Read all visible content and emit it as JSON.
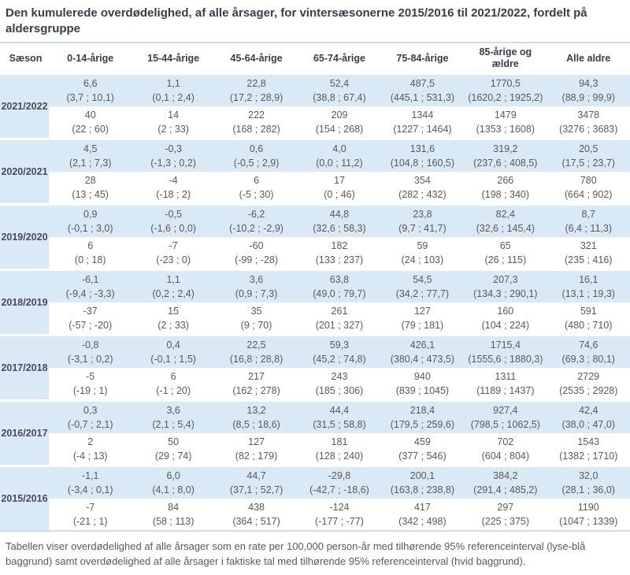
{
  "title": "Den kumulerede overdødelighed, af alle årsager, for vintersæsonerne 2015/2016 til 2021/2022, fordelt på aldersgruppe",
  "footnote": "Tabellen viser overdødelighed af alle årsager som en rate per 100,000 person-år med tilhørende 95% referenceinterval (lyse-blå baggrund) samt overdødelighed af alle årsager i faktiske tal med tilhørende 95% referenceinterval (hvid baggrund).",
  "colors": {
    "row_highlight": "#D9E9F6",
    "table_rule": "#C9DFF0",
    "heading_text": "#3B3B4D",
    "body_text": "#595959"
  },
  "table": {
    "columns": [
      "Sæson",
      "0-14-årige",
      "15-44-årige",
      "45-64-årige",
      "65-74-årige",
      "75-84-årige",
      "85-årige og ældre",
      "Alle aldre"
    ],
    "seasons": [
      {
        "label": "2021/2022",
        "rate": [
          "6,6",
          "1,1",
          "22,8",
          "52,4",
          "487,5",
          "1770,5",
          "94,3"
        ],
        "rate_ci": [
          "(3,7 ; 10,1)",
          "(0,1 ; 2,4)",
          "(17,2 ; 28,9)",
          "(38,8 ; 67,4)",
          "(445,1 ; 531,3)",
          "(1620,2 ; 1925,2)",
          "(88,9 ; 99,9)"
        ],
        "count": [
          "40",
          "14",
          "222",
          "209",
          "1344",
          "1479",
          "3478"
        ],
        "count_ci": [
          "(22 ; 60)",
          "(2 ; 33)",
          "(168 ; 282)",
          "(154 ; 268)",
          "(1227 ; 1464)",
          "(1353 ; 1608)",
          "(3276 ; 3683)"
        ]
      },
      {
        "label": "2020/2021",
        "rate": [
          "4,5",
          "-0,3",
          "0,6",
          "4,0",
          "131,6",
          "319,2",
          "20,5"
        ],
        "rate_ci": [
          "(2,1 ; 7,3)",
          "(-1,3 ; 0,2)",
          "(-0,5 ; 2,9)",
          "(0,0 ; 11,2)",
          "(104,8 ; 160,5)",
          "(237,6 ; 408,5)",
          "(17,5 ; 23,7)"
        ],
        "count": [
          "28",
          "-4",
          "6",
          "17",
          "354",
          "266",
          "780"
        ],
        "count_ci": [
          "(13 ; 45)",
          "(-18 ; 2)",
          "(-5 ; 30)",
          "(0 ; 46)",
          "(282 ; 432)",
          "(198 ; 340)",
          "(664 ; 902)"
        ]
      },
      {
        "label": "2019/2020",
        "rate": [
          "0,9",
          "-0,5",
          "-6,2",
          "44,8",
          "23,8",
          "82,4",
          "8,7"
        ],
        "rate_ci": [
          "(-0,1 ; 3,0)",
          "(-1,6 ; 0,0)",
          "(-10,2 ; -2,9)",
          "(32,6 ; 58,3)",
          "(9,7 ; 41,7)",
          "(32,6 ; 145,4)",
          "(6,4 ; 11,3)"
        ],
        "count": [
          "6",
          "-7",
          "-60",
          "182",
          "59",
          "65",
          "321"
        ],
        "count_ci": [
          "(0 ; 18)",
          "(-23 ; 0)",
          "(-99 ; -28)",
          "(133 ; 237)",
          "(24 ; 103)",
          "(26 ; 115)",
          "(235 ; 416)"
        ]
      },
      {
        "label": "2018/2019",
        "rate": [
          "-6,1",
          "1,1",
          "3,6",
          "63,8",
          "54,5",
          "207,3",
          "16,1"
        ],
        "rate_ci": [
          "(-9,4 ; -3,3)",
          "(0,2 ; 2,4)",
          "(0,9 ; 7,3)",
          "(49,0 ; 79,7)",
          "(34,2 ; 77,7)",
          "(134,3 ; 290,1)",
          "(13,1 ; 19,3)"
        ],
        "count": [
          "-37",
          "15",
          "35",
          "261",
          "127",
          "160",
          "591"
        ],
        "count_ci": [
          "(-57 ; -20)",
          "(2 ; 33)",
          "(9 ; 70)",
          "(201 ; 327)",
          "(79 ; 181)",
          "(104 ; 224)",
          "(480 ; 710)"
        ]
      },
      {
        "label": "2017/2018",
        "rate": [
          "-0,8",
          "0,4",
          "22,5",
          "59,3",
          "426,1",
          "1715,4",
          "74,6"
        ],
        "rate_ci": [
          "(-3,1 ; 0,2)",
          "(-0,1 ; 1,5)",
          "(16,8 ; 28,8)",
          "(45,2 ; 74,8)",
          "(380,4 ; 473,5)",
          "(1555,6 ; 1880,3)",
          "(69,3 ; 80,1)"
        ],
        "count": [
          "-5",
          "6",
          "217",
          "243",
          "940",
          "1311",
          "2729"
        ],
        "count_ci": [
          "(-19 ; 1)",
          "(-1 ; 20)",
          "(162 ; 278)",
          "(185 ; 306)",
          "(839 ; 1045)",
          "(1189 ; 1437)",
          "(2535 ; 2928)"
        ]
      },
      {
        "label": "2016/2017",
        "rate": [
          "0,3",
          "3,6",
          "13,2",
          "44,4",
          "218,4",
          "927,4",
          "42,4"
        ],
        "rate_ci": [
          "(-0,7 ; 2,1)",
          "(2,1 ; 5,4)",
          "(8,5 ; 18,6)",
          "(31,5 ; 58,8)",
          "(179,5 ; 259,6)",
          "(798,5 ; 1062,5)",
          "(38,0 ; 47,0)"
        ],
        "count": [
          "2",
          "50",
          "127",
          "181",
          "459",
          "702",
          "1543"
        ],
        "count_ci": [
          "(-4 ; 13)",
          "(29 ; 74)",
          "(82 ; 179)",
          "(128 ; 240)",
          "(377 ; 546)",
          "(604 ; 804)",
          "(1382 ; 1710)"
        ]
      },
      {
        "label": "2015/2016",
        "rate": [
          "-1,1",
          "6,0",
          "44,7",
          "-29,8",
          "200,1",
          "384,2",
          "32,0"
        ],
        "rate_ci": [
          "(-3,4 ; 0,1)",
          "(4,1 ; 8,0)",
          "(37,1 ; 52,7)",
          "(-42,7 ; -18,6)",
          "(163,8 ; 238,8)",
          "(291,4 ; 485,2)",
          "(28,1 ; 36,0)"
        ],
        "count": [
          "-7",
          "84",
          "438",
          "-124",
          "417",
          "297",
          "1190"
        ],
        "count_ci": [
          "(-21 ; 1)",
          "(58 ; 113)",
          "(364 ; 517)",
          "(-177 ; -77)",
          "(342 ; 498)",
          "(225 ; 375)",
          "(1047 ; 1339)"
        ]
      }
    ]
  }
}
